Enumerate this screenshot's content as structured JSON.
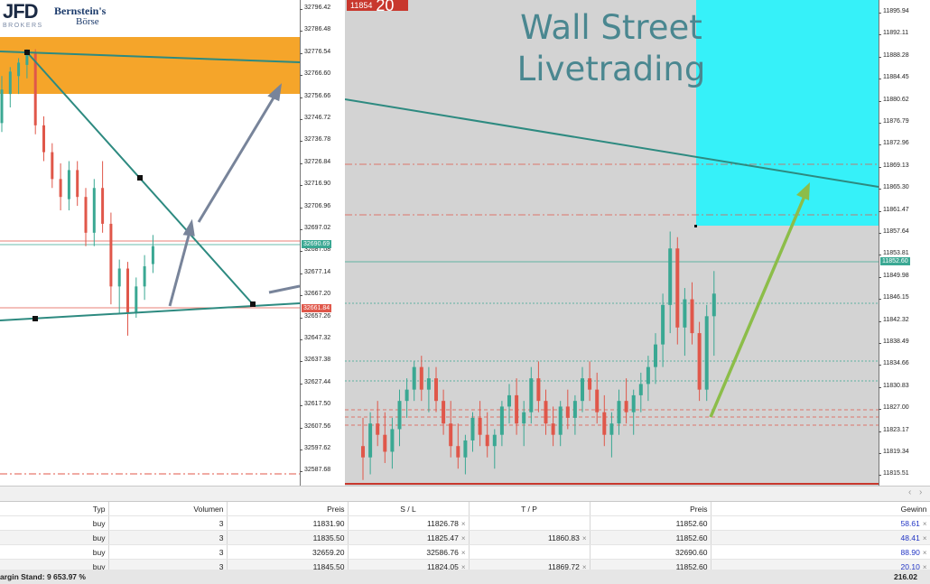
{
  "logos": {
    "jfd": "JFD",
    "brokers": "BROKERS",
    "bernstein": "Bernstein's",
    "boerse": "Börse"
  },
  "title": {
    "line1": "Wall Street",
    "line2": "Livetrading"
  },
  "price_badge": {
    "prefix": "11854",
    "big": "20"
  },
  "colors": {
    "bull": "#3aa893",
    "bear": "#e0574a",
    "orange_zone": "#f5a52a",
    "cyan_zone": "#36f1f9",
    "trend_line": "#2d8a80",
    "arrow_gray": "#78849a",
    "arrow_green": "#8cbd49",
    "profit_blue": "#2235c4",
    "badge_red": "#c8372d"
  },
  "left_axis": {
    "ticks": [
      "32796.42",
      "32786.48",
      "32776.54",
      "32766.60",
      "32756.66",
      "32746.72",
      "32736.78",
      "32726.84",
      "32716.90",
      "32706.96",
      "32697.02",
      "32687.08",
      "32677.14",
      "32667.20",
      "32657.26",
      "32647.32",
      "32637.38",
      "32627.44",
      "32617.50",
      "32607.56",
      "32597.62",
      "32587.68"
    ],
    "price_tags": [
      "32690.69",
      "32661.84"
    ]
  },
  "right_axis": {
    "ticks": [
      "11895.94",
      "11892.11",
      "11888.28",
      "11884.45",
      "11880.62",
      "11876.79",
      "11872.96",
      "11869.13",
      "11865.30",
      "11861.47",
      "11857.64",
      "11853.81",
      "11849.98",
      "11846.15",
      "11842.32",
      "11838.49",
      "11834.66",
      "11830.83",
      "11827.00",
      "11823.17",
      "11819.34",
      "11815.51"
    ],
    "price_tags": [
      "11852.60"
    ]
  },
  "positions": {
    "columns": [
      "Typ",
      "Volumen",
      "Preis",
      "S / L",
      "T / P",
      "Preis",
      "Gewinn"
    ],
    "rows": [
      {
        "typ": "buy",
        "volumen": "3",
        "preis": "11831.90",
        "sl": "11826.78",
        "tp": "",
        "preis2": "11852.60",
        "gewinn": "58.61"
      },
      {
        "typ": "buy",
        "volumen": "3",
        "preis": "11835.50",
        "sl": "11825.47",
        "tp": "11860.83",
        "preis2": "11852.60",
        "gewinn": "48.41"
      },
      {
        "typ": "buy",
        "volumen": "3",
        "preis": "32659.20",
        "sl": "32586.76",
        "tp": "",
        "preis2": "32690.60",
        "gewinn": "88.90"
      },
      {
        "typ": "buy",
        "volumen": "3",
        "preis": "11845.50",
        "sl": "11824.05",
        "tp": "11869.72",
        "preis2": "11852.60",
        "gewinn": "20.10"
      }
    ],
    "close_glyph": "×"
  },
  "footer": {
    "margin_label": "argin Stand: 9 653.97 %",
    "total": "216.02"
  },
  "chart_data": [
    {
      "type": "candlestick",
      "instrument_axis": "left",
      "ylim": [
        32583,
        32800
      ],
      "candles": [
        [
          32745,
          32766,
          32741,
          32760
        ],
        [
          32758,
          32770,
          32752,
          32768
        ],
        [
          32766,
          32774,
          32758,
          32772
        ],
        [
          32771,
          32778,
          32765,
          32776
        ],
        [
          32776,
          32778,
          32740,
          32744
        ],
        [
          32744,
          32748,
          32728,
          32732
        ],
        [
          32732,
          32736,
          32716,
          32720
        ],
        [
          32720,
          32727,
          32706,
          32712
        ],
        [
          32711,
          32728,
          32706,
          32724
        ],
        [
          32724,
          32728,
          32708,
          32712
        ],
        [
          32712,
          32716,
          32690,
          32696
        ],
        [
          32696,
          32720,
          32690,
          32716
        ],
        [
          32716,
          32728,
          32696,
          32700
        ],
        [
          32700,
          32705,
          32664,
          32672
        ],
        [
          32672,
          32684,
          32660,
          32680
        ],
        [
          32680,
          32683,
          32650,
          32660
        ],
        [
          32660,
          32676,
          32658,
          32672
        ],
        [
          32672,
          32686,
          32666,
          32681
        ],
        [
          32682,
          32695,
          32678,
          32690
        ]
      ]
    },
    {
      "type": "candlestick",
      "instrument_axis": "right",
      "ylim": [
        11813,
        11899
      ],
      "candles": [
        [
          11820,
          11825,
          11814,
          11818
        ],
        [
          11818,
          11826,
          11815,
          11824
        ],
        [
          11824,
          11828,
          11820,
          11822
        ],
        [
          11822,
          11826,
          11817,
          11819
        ],
        [
          11819,
          11825,
          11816,
          11823
        ],
        [
          11823,
          11830,
          11820,
          11828
        ],
        [
          11828,
          11832,
          11825,
          11830
        ],
        [
          11830,
          11835,
          11828,
          11834
        ],
        [
          11834,
          11836,
          11828,
          11830
        ],
        [
          11830,
          11834,
          11826,
          11832
        ],
        [
          11832,
          11834,
          11826,
          11828
        ],
        [
          11828,
          11830,
          11822,
          11824
        ],
        [
          11824,
          11828,
          11818,
          11820
        ],
        [
          11820,
          11824,
          11816,
          11818
        ],
        [
          11818,
          11822,
          11815,
          11821
        ],
        [
          11821,
          11826,
          11819,
          11825
        ],
        [
          11825,
          11828,
          11820,
          11822
        ],
        [
          11822,
          11826,
          11818,
          11820
        ],
        [
          11820,
          11823,
          11816,
          11822
        ],
        [
          11822,
          11828,
          11820,
          11827
        ],
        [
          11827,
          11831,
          11824,
          11829
        ],
        [
          11829,
          11832,
          11822,
          11824
        ],
        [
          11824,
          11828,
          11820,
          11826
        ],
        [
          11826,
          11834,
          11824,
          11832
        ],
        [
          11832,
          11835,
          11826,
          11828
        ],
        [
          11828,
          11830,
          11822,
          11824
        ],
        [
          11824,
          11827,
          11820,
          11822
        ],
        [
          11822,
          11828,
          11820,
          11827
        ],
        [
          11827,
          11830,
          11823,
          11825
        ],
        [
          11825,
          11829,
          11822,
          11828
        ],
        [
          11828,
          11834,
          11826,
          11832
        ],
        [
          11832,
          11835,
          11828,
          11830
        ],
        [
          11830,
          11833,
          11824,
          11826
        ],
        [
          11826,
          11829,
          11820,
          11822
        ],
        [
          11822,
          11826,
          11818,
          11824
        ],
        [
          11824,
          11830,
          11822,
          11828
        ],
        [
          11828,
          11832,
          11824,
          11826
        ],
        [
          11826,
          11830,
          11822,
          11829
        ],
        [
          11829,
          11833,
          11826,
          11831
        ],
        [
          11831,
          11836,
          11828,
          11834
        ],
        [
          11834,
          11840,
          11831,
          11838
        ],
        [
          11838,
          11847,
          11834,
          11845
        ],
        [
          11845,
          11858,
          11840,
          11855
        ],
        [
          11855,
          11857,
          11838,
          11841
        ],
        [
          11841,
          11848,
          11836,
          11846
        ],
        [
          11846,
          11849,
          11838,
          11840
        ],
        [
          11840,
          11842,
          11828,
          11830
        ],
        [
          11830,
          11845,
          11828,
          11843
        ],
        [
          11843,
          11851,
          11836,
          11847
        ]
      ]
    }
  ]
}
